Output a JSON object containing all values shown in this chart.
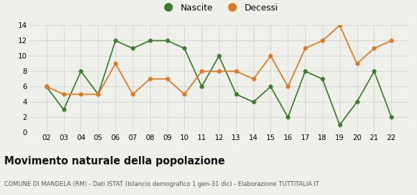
{
  "years": [
    "02",
    "03",
    "04",
    "05",
    "06",
    "07",
    "08",
    "09",
    "10",
    "11",
    "12",
    "13",
    "14",
    "15",
    "16",
    "17",
    "18",
    "19",
    "20",
    "21",
    "22"
  ],
  "nascite": [
    6,
    3,
    8,
    5,
    12,
    11,
    12,
    12,
    11,
    6,
    10,
    5,
    4,
    6,
    2,
    8,
    7,
    1,
    4,
    8,
    2
  ],
  "decessi": [
    6,
    5,
    5,
    5,
    9,
    5,
    7,
    7,
    5,
    8,
    8,
    8,
    7,
    10,
    6,
    11,
    12,
    14,
    9,
    11,
    12
  ],
  "nascite_color": "#3a7d2c",
  "decessi_color": "#e07820",
  "title": "Movimento naturale della popolazione",
  "subtitle": "COMUNE DI MANDELA (RM) - Dati ISTAT (bilancio demografico 1 gen-31 dic) - Elaborazione TUTTITALIA.IT",
  "ylim": [
    0,
    14
  ],
  "yticks": [
    0,
    2,
    4,
    6,
    8,
    10,
    12,
    14
  ],
  "background_color": "#f0f0eb",
  "grid_color": "#d0d0d0",
  "legend_nascite": "Nascite",
  "legend_decessi": "Decessi"
}
